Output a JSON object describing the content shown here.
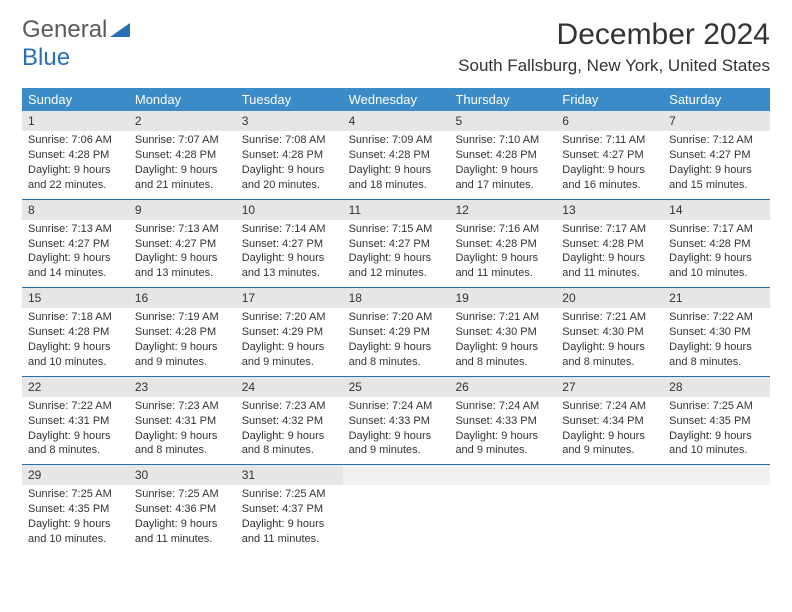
{
  "logo": {
    "text1": "General",
    "text2": "Blue",
    "color1": "#5a5a5a",
    "color2": "#2a6fb5"
  },
  "title": "December 2024",
  "location": "South Fallsburg, New York, United States",
  "styling": {
    "header_bg": "#3b8bc9",
    "header_text": "#ffffff",
    "daynum_bg": "#e6e6e6",
    "week_border": "#2a6fb5",
    "body_text": "#333333",
    "page_bg": "#ffffff",
    "title_fontsize": 30,
    "location_fontsize": 17,
    "weekday_fontsize": 13,
    "cell_fontsize": 11
  },
  "weekdays": [
    "Sunday",
    "Monday",
    "Tuesday",
    "Wednesday",
    "Thursday",
    "Friday",
    "Saturday"
  ],
  "weeks": [
    [
      {
        "n": "1",
        "sr": "Sunrise: 7:06 AM",
        "ss": "Sunset: 4:28 PM",
        "dl": "Daylight: 9 hours and 22 minutes."
      },
      {
        "n": "2",
        "sr": "Sunrise: 7:07 AM",
        "ss": "Sunset: 4:28 PM",
        "dl": "Daylight: 9 hours and 21 minutes."
      },
      {
        "n": "3",
        "sr": "Sunrise: 7:08 AM",
        "ss": "Sunset: 4:28 PM",
        "dl": "Daylight: 9 hours and 20 minutes."
      },
      {
        "n": "4",
        "sr": "Sunrise: 7:09 AM",
        "ss": "Sunset: 4:28 PM",
        "dl": "Daylight: 9 hours and 18 minutes."
      },
      {
        "n": "5",
        "sr": "Sunrise: 7:10 AM",
        "ss": "Sunset: 4:28 PM",
        "dl": "Daylight: 9 hours and 17 minutes."
      },
      {
        "n": "6",
        "sr": "Sunrise: 7:11 AM",
        "ss": "Sunset: 4:27 PM",
        "dl": "Daylight: 9 hours and 16 minutes."
      },
      {
        "n": "7",
        "sr": "Sunrise: 7:12 AM",
        "ss": "Sunset: 4:27 PM",
        "dl": "Daylight: 9 hours and 15 minutes."
      }
    ],
    [
      {
        "n": "8",
        "sr": "Sunrise: 7:13 AM",
        "ss": "Sunset: 4:27 PM",
        "dl": "Daylight: 9 hours and 14 minutes."
      },
      {
        "n": "9",
        "sr": "Sunrise: 7:13 AM",
        "ss": "Sunset: 4:27 PM",
        "dl": "Daylight: 9 hours and 13 minutes."
      },
      {
        "n": "10",
        "sr": "Sunrise: 7:14 AM",
        "ss": "Sunset: 4:27 PM",
        "dl": "Daylight: 9 hours and 13 minutes."
      },
      {
        "n": "11",
        "sr": "Sunrise: 7:15 AM",
        "ss": "Sunset: 4:27 PM",
        "dl": "Daylight: 9 hours and 12 minutes."
      },
      {
        "n": "12",
        "sr": "Sunrise: 7:16 AM",
        "ss": "Sunset: 4:28 PM",
        "dl": "Daylight: 9 hours and 11 minutes."
      },
      {
        "n": "13",
        "sr": "Sunrise: 7:17 AM",
        "ss": "Sunset: 4:28 PM",
        "dl": "Daylight: 9 hours and 11 minutes."
      },
      {
        "n": "14",
        "sr": "Sunrise: 7:17 AM",
        "ss": "Sunset: 4:28 PM",
        "dl": "Daylight: 9 hours and 10 minutes."
      }
    ],
    [
      {
        "n": "15",
        "sr": "Sunrise: 7:18 AM",
        "ss": "Sunset: 4:28 PM",
        "dl": "Daylight: 9 hours and 10 minutes."
      },
      {
        "n": "16",
        "sr": "Sunrise: 7:19 AM",
        "ss": "Sunset: 4:28 PM",
        "dl": "Daylight: 9 hours and 9 minutes."
      },
      {
        "n": "17",
        "sr": "Sunrise: 7:20 AM",
        "ss": "Sunset: 4:29 PM",
        "dl": "Daylight: 9 hours and 9 minutes."
      },
      {
        "n": "18",
        "sr": "Sunrise: 7:20 AM",
        "ss": "Sunset: 4:29 PM",
        "dl": "Daylight: 9 hours and 8 minutes."
      },
      {
        "n": "19",
        "sr": "Sunrise: 7:21 AM",
        "ss": "Sunset: 4:30 PM",
        "dl": "Daylight: 9 hours and 8 minutes."
      },
      {
        "n": "20",
        "sr": "Sunrise: 7:21 AM",
        "ss": "Sunset: 4:30 PM",
        "dl": "Daylight: 9 hours and 8 minutes."
      },
      {
        "n": "21",
        "sr": "Sunrise: 7:22 AM",
        "ss": "Sunset: 4:30 PM",
        "dl": "Daylight: 9 hours and 8 minutes."
      }
    ],
    [
      {
        "n": "22",
        "sr": "Sunrise: 7:22 AM",
        "ss": "Sunset: 4:31 PM",
        "dl": "Daylight: 9 hours and 8 minutes."
      },
      {
        "n": "23",
        "sr": "Sunrise: 7:23 AM",
        "ss": "Sunset: 4:31 PM",
        "dl": "Daylight: 9 hours and 8 minutes."
      },
      {
        "n": "24",
        "sr": "Sunrise: 7:23 AM",
        "ss": "Sunset: 4:32 PM",
        "dl": "Daylight: 9 hours and 8 minutes."
      },
      {
        "n": "25",
        "sr": "Sunrise: 7:24 AM",
        "ss": "Sunset: 4:33 PM",
        "dl": "Daylight: 9 hours and 9 minutes."
      },
      {
        "n": "26",
        "sr": "Sunrise: 7:24 AM",
        "ss": "Sunset: 4:33 PM",
        "dl": "Daylight: 9 hours and 9 minutes."
      },
      {
        "n": "27",
        "sr": "Sunrise: 7:24 AM",
        "ss": "Sunset: 4:34 PM",
        "dl": "Daylight: 9 hours and 9 minutes."
      },
      {
        "n": "28",
        "sr": "Sunrise: 7:25 AM",
        "ss": "Sunset: 4:35 PM",
        "dl": "Daylight: 9 hours and 10 minutes."
      }
    ],
    [
      {
        "n": "29",
        "sr": "Sunrise: 7:25 AM",
        "ss": "Sunset: 4:35 PM",
        "dl": "Daylight: 9 hours and 10 minutes."
      },
      {
        "n": "30",
        "sr": "Sunrise: 7:25 AM",
        "ss": "Sunset: 4:36 PM",
        "dl": "Daylight: 9 hours and 11 minutes."
      },
      {
        "n": "31",
        "sr": "Sunrise: 7:25 AM",
        "ss": "Sunset: 4:37 PM",
        "dl": "Daylight: 9 hours and 11 minutes."
      },
      null,
      null,
      null,
      null
    ]
  ]
}
